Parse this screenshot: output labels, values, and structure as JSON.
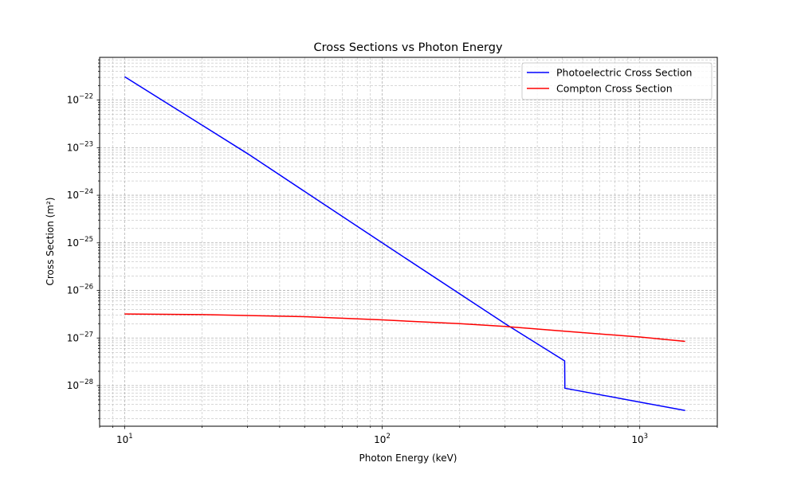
{
  "chart_data": {
    "type": "line",
    "title": "Cross Sections vs Photon Energy",
    "xlabel": "Photon Energy (keV)",
    "ylabel": "Cross Section (m²)",
    "xscale": "log",
    "yscale": "log",
    "xlim": [
      8,
      2000
    ],
    "ylim": [
      1.4e-29,
      7.9e-22
    ],
    "grid": true,
    "grid_which": "both",
    "legend_position": "top-right",
    "x_ticks": [
      {
        "value": 10,
        "base": "10",
        "exp": "1"
      },
      {
        "value": 100,
        "base": "10",
        "exp": "2"
      },
      {
        "value": 1000,
        "base": "10",
        "exp": "3"
      }
    ],
    "y_ticks": [
      {
        "value": 1e-22,
        "base": "10",
        "exp": "−22"
      },
      {
        "value": 1e-23,
        "base": "10",
        "exp": "−23"
      },
      {
        "value": 1e-24,
        "base": "10",
        "exp": "−24"
      },
      {
        "value": 1e-25,
        "base": "10",
        "exp": "−25"
      },
      {
        "value": 1e-26,
        "base": "10",
        "exp": "−26"
      },
      {
        "value": 1e-27,
        "base": "10",
        "exp": "−27"
      },
      {
        "value": 1e-28,
        "base": "10",
        "exp": "−28"
      }
    ],
    "series": [
      {
        "name": "Photoelectric Cross Section",
        "color": "#0000ff",
        "points": [
          [
            10,
            3.1e-22
          ],
          [
            30,
            7.5e-24
          ],
          [
            100,
            1e-25
          ],
          [
            300,
            2e-27
          ],
          [
            511,
            3.3e-28
          ],
          [
            512,
            8.8e-29
          ],
          [
            1000,
            4.5e-29
          ],
          [
            1500,
            3e-29
          ]
        ]
      },
      {
        "name": "Compton Cross Section",
        "color": "#ff0000",
        "points": [
          [
            10,
            3.2e-27
          ],
          [
            20,
            3.1e-27
          ],
          [
            50,
            2.8e-27
          ],
          [
            100,
            2.4e-27
          ],
          [
            200,
            2e-27
          ],
          [
            300,
            1.75e-27
          ],
          [
            500,
            1.4e-27
          ],
          [
            1000,
            1.05e-27
          ],
          [
            1500,
            8.5e-28
          ]
        ]
      }
    ]
  }
}
